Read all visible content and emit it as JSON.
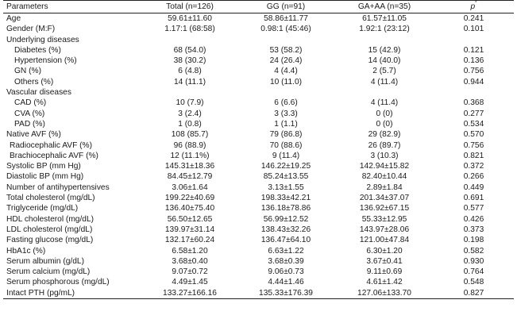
{
  "columns": {
    "param": "Parameters",
    "total": "Total (n=126)",
    "gg": "GG (n=91)",
    "gaaa": "GA+AA (n=35)",
    "p": "p",
    "p_sup": "*"
  },
  "rows": [
    {
      "label": "Age",
      "total": "59.61±11.60",
      "gg": "58.86±11.77",
      "gaaa": "61.57±11.05",
      "p": "0.241"
    },
    {
      "label": "Gender (M:F)",
      "total": "1.17:1 (68:58)",
      "gg": "0.98:1 (45:46)",
      "gaaa": "1.92:1 (23:12)",
      "p": "0.101"
    },
    {
      "label": "Underlying diseases",
      "total": "",
      "gg": "",
      "gaaa": "",
      "p": ""
    },
    {
      "label": "Diabetes (%)",
      "total": "68 (54.0)",
      "gg": "53 (58.2)",
      "gaaa": "15 (42.9)",
      "p": "0.121"
    },
    {
      "label": "Hypertension (%)",
      "total": "38 (30.2)",
      "gg": "24 (26.4)",
      "gaaa": "14 (40.0)",
      "p": "0.136"
    },
    {
      "label": "GN (%)",
      "total": "6 (4.8)",
      "gg": "4 (4.4)",
      "gaaa": "2 (5.7)",
      "p": "0.756"
    },
    {
      "label": "Others (%)",
      "total": "14 (11.1)",
      "gg": "10 (11.0)",
      "gaaa": "4 (11.4)",
      "p": "0.944"
    },
    {
      "label": "Vascular diseases",
      "total": "",
      "gg": "",
      "gaaa": "",
      "p": ""
    },
    {
      "label": "CAD (%)",
      "total": "10 (7.9)",
      "gg": "6 (6.6)",
      "gaaa": "4 (11.4)",
      "p": "0.368"
    },
    {
      "label": "CVA (%)",
      "total": "3 (2.4)",
      "gg": "3 (3.3)",
      "gaaa": "0 (0)",
      "p": "0.277"
    },
    {
      "label": "PAD (%)",
      "total": "1 (0.8)",
      "gg": "1 (1.1)",
      "gaaa": "0 (0)",
      "p": "0.534"
    },
    {
      "label": "Native AVF (%)",
      "total": "108 (85.7)",
      "gg": "79 (86.8)",
      "gaaa": "29 (82.9)",
      "p": "0.570"
    },
    {
      "label": "Radiocephalic AVF (%)",
      "total": "96 (88.9)",
      "gg": "70 (88.6)",
      "gaaa": "26 (89.7)",
      "p": "0.756"
    },
    {
      "label": "Brachiocephalic AVF (%)",
      "total": "12 (11.1%)",
      "gg": "9 (11.4)",
      "gaaa": "3 (10.3)",
      "p": "0.821"
    },
    {
      "label": "Systolic BP (mm Hg)",
      "total": "145.31±18.36",
      "gg": "146.22±19.25",
      "gaaa": "142.94±15.82",
      "p": "0.372"
    },
    {
      "label": "Diastolic BP (mm Hg)",
      "total": "84.45±12.79",
      "gg": "85.24±13.55",
      "gaaa": "82.40±10.44",
      "p": "0.266"
    },
    {
      "label": "Number of antihypertensives",
      "total": "3.06±1.64",
      "gg": "3.13±1.55",
      "gaaa": "2.89±1.84",
      "p": "0.449"
    },
    {
      "label": "Total cholesterol (mg/dL)",
      "total": "199.22±40.69",
      "gg": "198.33±42.21",
      "gaaa": "201.34±37.07",
      "p": "0.691"
    },
    {
      "label": "Triglyceride (mg/dL)",
      "total": "136.40±75.40",
      "gg": "136.18±78.86",
      "gaaa": "136.92±67.15",
      "p": "0.577"
    },
    {
      "label": "HDL cholesterol (mg/dL)",
      "total": "56.50±12.65",
      "gg": "56.99±12.52",
      "gaaa": "55.33±12.95",
      "p": "0.426"
    },
    {
      "label": "LDL cholesterol (mg/dL)",
      "total": "139.97±31.14",
      "gg": "138.43±32.26",
      "gaaa": "143.97±28.06",
      "p": "0.373"
    },
    {
      "label": "Fasting glucose (mg/dL)",
      "total": "132.17±60.24",
      "gg": "136.47±64.10",
      "gaaa": "121.00±47.84",
      "p": "0.198"
    },
    {
      "label": "HbA1c (%)",
      "total": "6.58±1.20",
      "gg": "6.63±1.22",
      "gaaa": "6.30±1.20",
      "p": "0.582"
    },
    {
      "label": "Serum albumin (g/dL)",
      "total": "3.68±0.40",
      "gg": "3.68±0.39",
      "gaaa": "3.67±0.41",
      "p": "0.930"
    },
    {
      "label": "Serum calcium (mg/dL)",
      "total": "9.07±0.72",
      "gg": "9.06±0.73",
      "gaaa": "9.11±0.69",
      "p": "0.764"
    },
    {
      "label": "Serum phosphorous (mg/dL)",
      "total": "4.49±1.45",
      "gg": "4.44±1.46",
      "gaaa": "4.61±1.42",
      "p": "0.548"
    },
    {
      "label": "Intact PTH (pg/mL)",
      "total": "133.27±166.16",
      "gg": "135.33±176.39",
      "gaaa": "127.06±133.70",
      "p": "0.827"
    }
  ]
}
